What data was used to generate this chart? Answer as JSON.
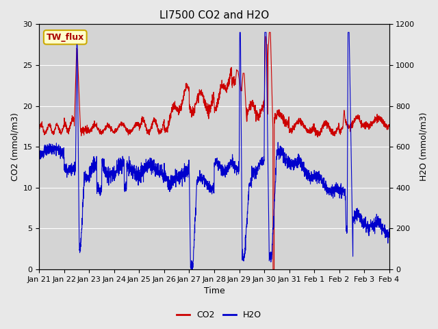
{
  "title": "LI7500 CO2 and H2O",
  "xlabel": "Time",
  "ylabel_left": "CO2 (mmol/m3)",
  "ylabel_right": "H2O (mmol/m3)",
  "legend_label": "TW_flux",
  "co2_label": "CO2",
  "h2o_label": "H2O",
  "xlim_start": 0,
  "xlim_end": 14,
  "ylim_left": [
    0,
    30
  ],
  "ylim_right": [
    0,
    1200
  ],
  "yticks_left": [
    0,
    5,
    10,
    15,
    20,
    25,
    30
  ],
  "yticks_right": [
    0,
    200,
    400,
    600,
    800,
    1000,
    1200
  ],
  "xtick_labels": [
    "Jan 21",
    "Jan 22",
    "Jan 23",
    "Jan 24",
    "Jan 25",
    "Jan 26",
    "Jan 27",
    "Jan 28",
    "Jan 29",
    "Jan 30",
    "Jan 31",
    "Feb 1",
    "Feb 2",
    "Feb 3",
    "Feb 4"
  ],
  "bg_color": "#e8e8e8",
  "plot_bg_color": "#d4d4d4",
  "co2_color": "#cc0000",
  "h2o_color": "#0000cc",
  "legend_box_color": "#ffffcc",
  "legend_box_edge": "#ccaa00",
  "title_fontsize": 11,
  "axis_fontsize": 9,
  "tick_fontsize": 8,
  "legend_fontsize": 9
}
